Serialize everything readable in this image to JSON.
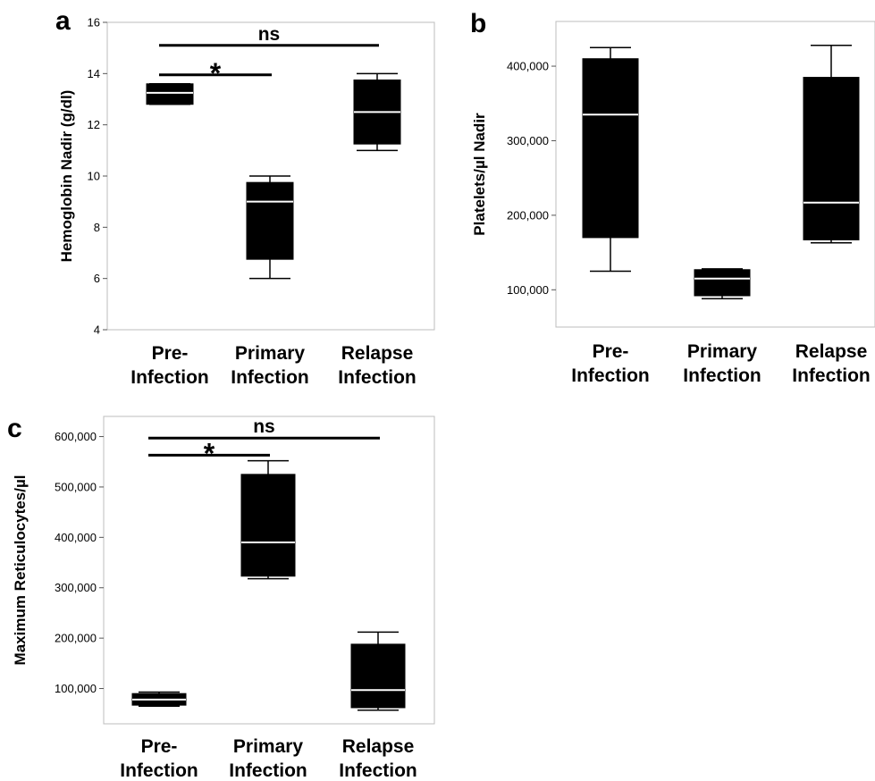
{
  "chart_data": [
    {
      "panel": "a",
      "type": "box",
      "ylabel": "Hemoglobin Nadir (g/dl)",
      "categories": [
        [
          "Pre-",
          "Infection"
        ],
        [
          "Primary",
          "Infection"
        ],
        [
          "Relapse",
          "Infection"
        ]
      ],
      "ylim": [
        4,
        16
      ],
      "yticks": [
        4,
        6,
        8,
        10,
        12,
        14,
        16
      ],
      "ytick_labels": [
        "4",
        "6",
        "8",
        "10",
        "12",
        "14",
        "16"
      ],
      "grid": false,
      "boxes": [
        {
          "min": 12.8,
          "q1": 12.8,
          "median": 13.25,
          "q3": 13.6,
          "max": 13.6
        },
        {
          "min": 6.0,
          "q1": 6.75,
          "median": 9.0,
          "q3": 9.75,
          "max": 10.0
        },
        {
          "min": 11.0,
          "q1": 11.25,
          "median": 12.5,
          "q3": 13.75,
          "max": 14.0
        }
      ],
      "significance": [
        {
          "from": 0,
          "to": 2,
          "label": "ns",
          "y": 15.1
        },
        {
          "from": 0,
          "to": 1,
          "label": "*",
          "y": 13.95
        }
      ]
    },
    {
      "panel": "b",
      "type": "box",
      "ylabel": "Platelets/µl Nadir",
      "categories": [
        [
          "Pre-",
          "Infection"
        ],
        [
          "Primary",
          "Infection"
        ],
        [
          "Relapse",
          "Infection"
        ]
      ],
      "ylim": [
        50000,
        460000
      ],
      "yticks": [
        100000,
        200000,
        300000,
        400000
      ],
      "ytick_labels": [
        "100,000",
        "200,000",
        "300,000",
        "400,000"
      ],
      "grid": false,
      "boxes": [
        {
          "min": 125000,
          "q1": 170000,
          "median": 335000,
          "q3": 410000,
          "max": 425000
        },
        {
          "min": 88000,
          "q1": 92000,
          "median": 115000,
          "q3": 127000,
          "max": 128000
        },
        {
          "min": 163000,
          "q1": 167000,
          "median": 217000,
          "q3": 385000,
          "max": 428000
        }
      ],
      "significance": []
    },
    {
      "panel": "c",
      "type": "box",
      "ylabel": "Maximum Reticulocytes/µl",
      "categories": [
        [
          "Pre-",
          "Infection"
        ],
        [
          "Primary",
          "Infection"
        ],
        [
          "Relapse",
          "Infection"
        ]
      ],
      "ylim": [
        30000,
        640000
      ],
      "yticks": [
        100000,
        200000,
        300000,
        400000,
        500000,
        600000
      ],
      "ytick_labels": [
        "100,000",
        "200,000",
        "300,000",
        "400,000",
        "500,000",
        "600,000"
      ],
      "grid": false,
      "boxes": [
        {
          "min": 65000,
          "q1": 67000,
          "median": 78000,
          "q3": 90000,
          "max": 93000
        },
        {
          "min": 318000,
          "q1": 323000,
          "median": 390000,
          "q3": 525000,
          "max": 552000
        },
        {
          "min": 57000,
          "q1": 62000,
          "median": 97000,
          "q3": 188000,
          "max": 212000
        }
      ],
      "significance": [
        {
          "from": 0,
          "to": 2,
          "label": "ns",
          "y": 597000
        },
        {
          "from": 0,
          "to": 1,
          "label": "*",
          "y": 563000
        }
      ]
    }
  ]
}
